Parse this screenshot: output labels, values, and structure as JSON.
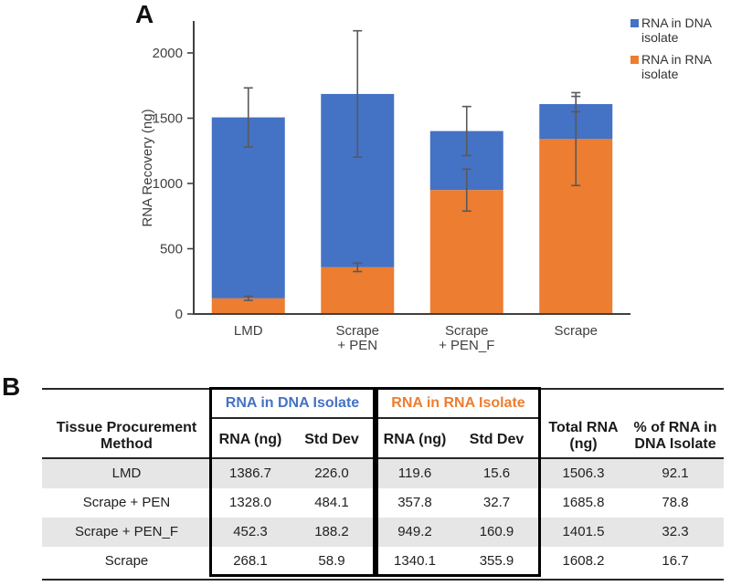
{
  "panels": {
    "a_label": "A",
    "b_label": "B"
  },
  "chart_data": {
    "type": "bar",
    "stacked": true,
    "ylabel": "RNA Recovery (ng)",
    "yticks": [
      0,
      500,
      1000,
      1500,
      2000
    ],
    "ylim": [
      0,
      2245
    ],
    "grid": false,
    "legend_position": "top-right",
    "categories": [
      "LMD",
      "Scrape\n+ PEN",
      "Scrape\n+ PEN_F",
      "Scrape"
    ],
    "series": [
      {
        "name": "RNA in RNA isolate",
        "color": "#ED7D31",
        "values": [
          119.6,
          357.8,
          949.2,
          1340.1
        ],
        "std_dev": [
          15.6,
          32.7,
          160.9,
          355.9
        ]
      },
      {
        "name": "RNA in DNA isolate",
        "color": "#4472C4",
        "values": [
          1386.7,
          1328.0,
          452.3,
          268.1
        ],
        "std_dev": [
          226.0,
          484.1,
          188.2,
          58.9
        ]
      }
    ],
    "totals": [
      1506.3,
      1685.8,
      1401.5,
      1608.2
    ],
    "legend": [
      {
        "label": "RNA in DNA\nisolate",
        "color": "#4472C4"
      },
      {
        "label": "RNA in RNA\nisolate",
        "color": "#ED7D31"
      }
    ],
    "axis_color": "#404040",
    "error_bar_color": "#595959"
  },
  "table": {
    "method_header": "Tissue Procurement\nMethod",
    "groups": [
      {
        "label": "RNA in DNA Isolate",
        "color": "#4472C4"
      },
      {
        "label": "RNA in RNA Isolate",
        "color": "#ED7D31"
      }
    ],
    "subheader_rna": "RNA (ng)",
    "subheader_sd": "Std Dev",
    "total_header": "Total RNA\n(ng)",
    "pct_header": "% of RNA in\nDNA Isolate",
    "stripe_color": "#E7E6E6",
    "rows": [
      {
        "method": "LMD",
        "dna_rna": "1386.7",
        "dna_sd": "226.0",
        "rna_rna": "119.6",
        "rna_sd": "15.6",
        "total": "1506.3",
        "pct": "92.1"
      },
      {
        "method": "Scrape + PEN",
        "dna_rna": "1328.0",
        "dna_sd": "484.1",
        "rna_rna": "357.8",
        "rna_sd": "32.7",
        "total": "1685.8",
        "pct": "78.8"
      },
      {
        "method": "Scrape + PEN_F",
        "dna_rna": "452.3",
        "dna_sd": "188.2",
        "rna_rna": "949.2",
        "rna_sd": "160.9",
        "total": "1401.5",
        "pct": "32.3"
      },
      {
        "method": "Scrape",
        "dna_rna": "268.1",
        "dna_sd": "58.9",
        "rna_rna": "1340.1",
        "rna_sd": "355.9",
        "total": "1608.2",
        "pct": "16.7"
      }
    ]
  }
}
